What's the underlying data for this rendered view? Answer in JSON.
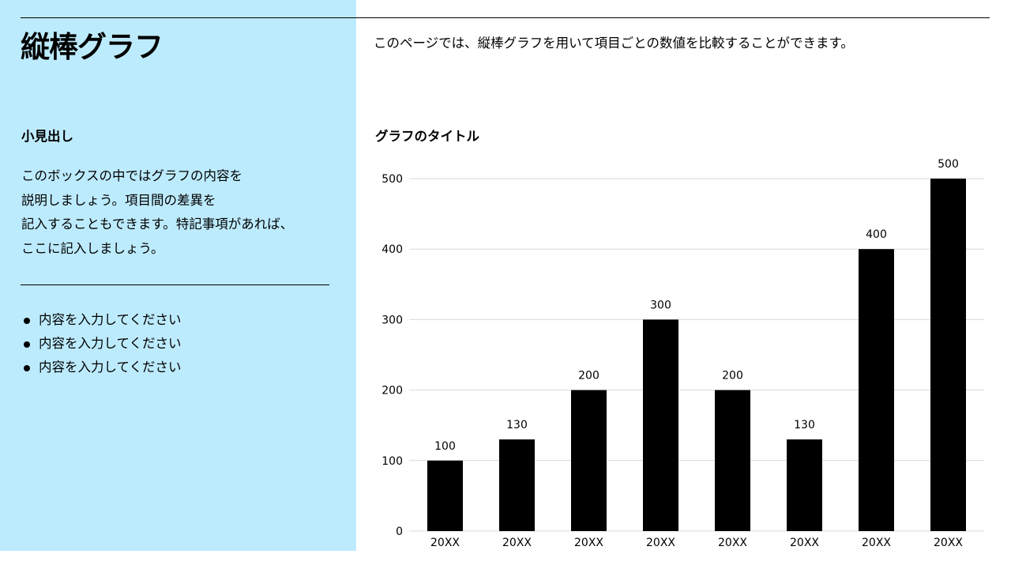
{
  "page": {
    "title": "縦棒グラフ",
    "intro": "このページでは、縦棒グラフを用いて項目ごとの数値を比較することができます。"
  },
  "sidebar": {
    "subheading": "小見出し",
    "description": "このボックスの中ではグラフの内容を\n説明しましょう。項目間の差異を\n記入することもできます。特記事項があれば、\nここに記入しましょう。",
    "bullets": [
      "内容を入力してください",
      "内容を入力してください",
      "内容を入力してください"
    ]
  },
  "colors": {
    "sidebar_bg": "#bdebfe",
    "bar": "#000000",
    "grid": "#d9d9d9"
  },
  "chart_data": {
    "type": "bar",
    "title": "グラフのタイトル",
    "categories": [
      "20XX",
      "20XX",
      "20XX",
      "20XX",
      "20XX",
      "20XX",
      "20XX",
      "20XX"
    ],
    "values": [
      100,
      130,
      200,
      300,
      200,
      130,
      400,
      500
    ],
    "ylim": [
      0,
      500
    ],
    "yticks": [
      0,
      100,
      200,
      300,
      400,
      500
    ],
    "grid": true,
    "data_labels": true
  }
}
